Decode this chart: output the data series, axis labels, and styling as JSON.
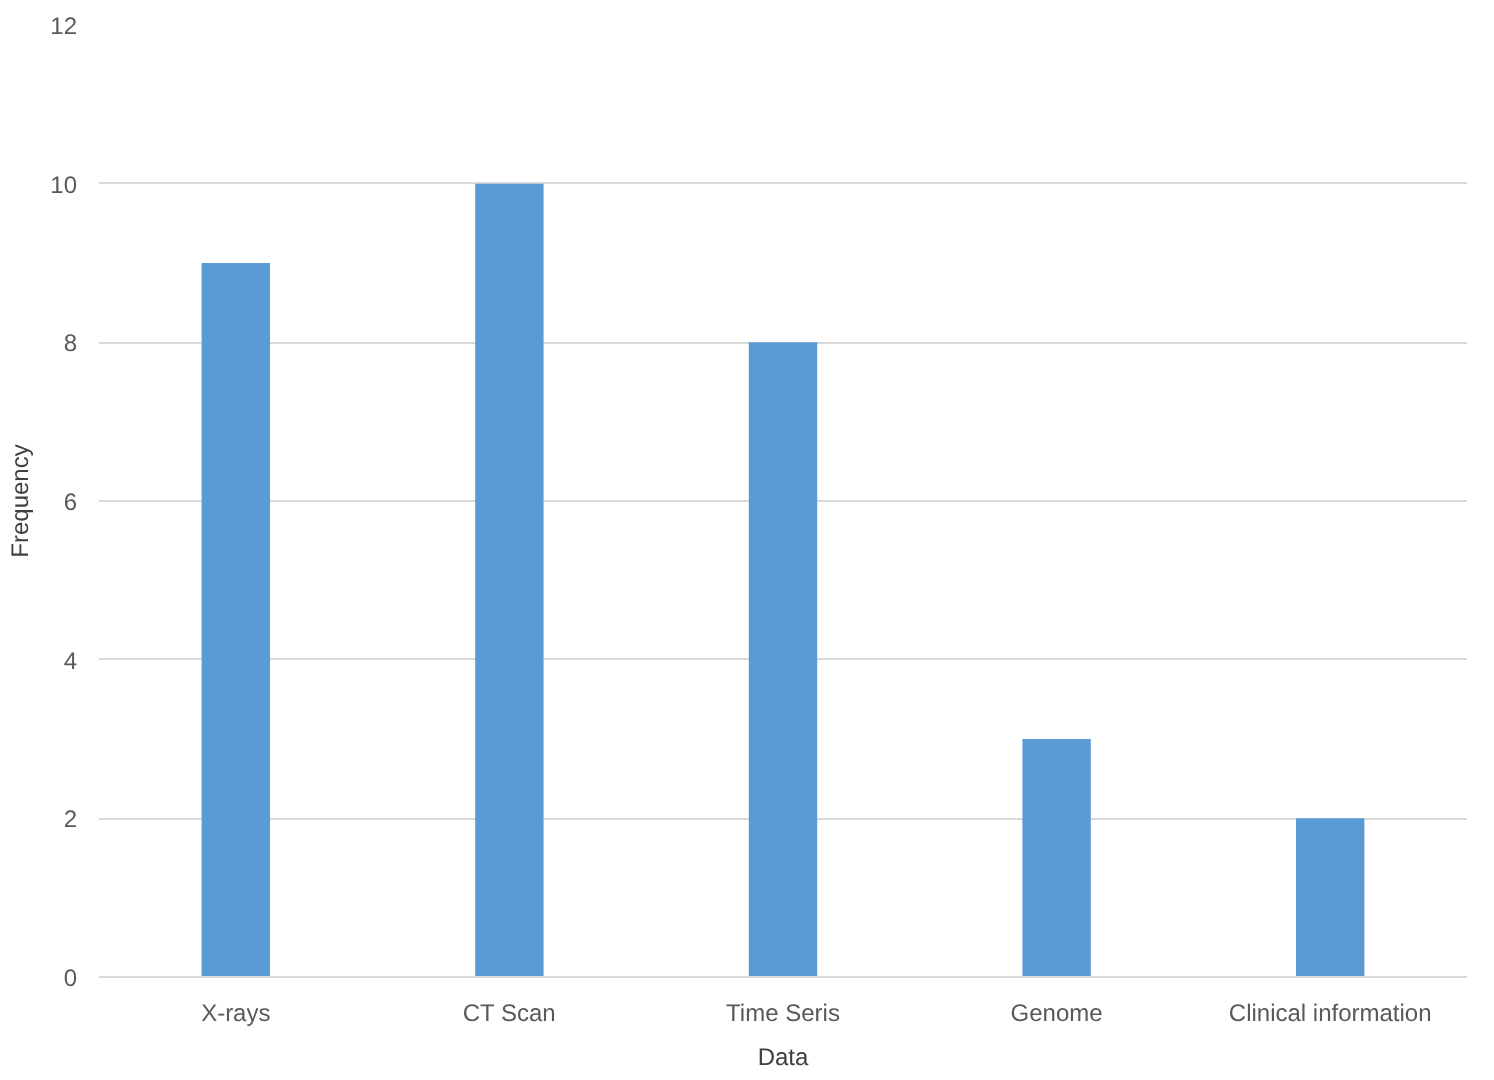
{
  "chart_data": {
    "type": "bar",
    "xlabel": "Data",
    "ylabel": "Frequency",
    "categories": [
      "X-rays",
      "CT Scan",
      "Time Seris",
      "Genome",
      "Clinical information"
    ],
    "values": [
      9,
      10,
      8,
      3,
      2
    ],
    "color": "#5b9bd5",
    "ylim": [
      0,
      12
    ],
    "yticks": [
      0,
      2,
      4,
      6,
      8,
      10,
      12
    ],
    "grid": "y"
  }
}
